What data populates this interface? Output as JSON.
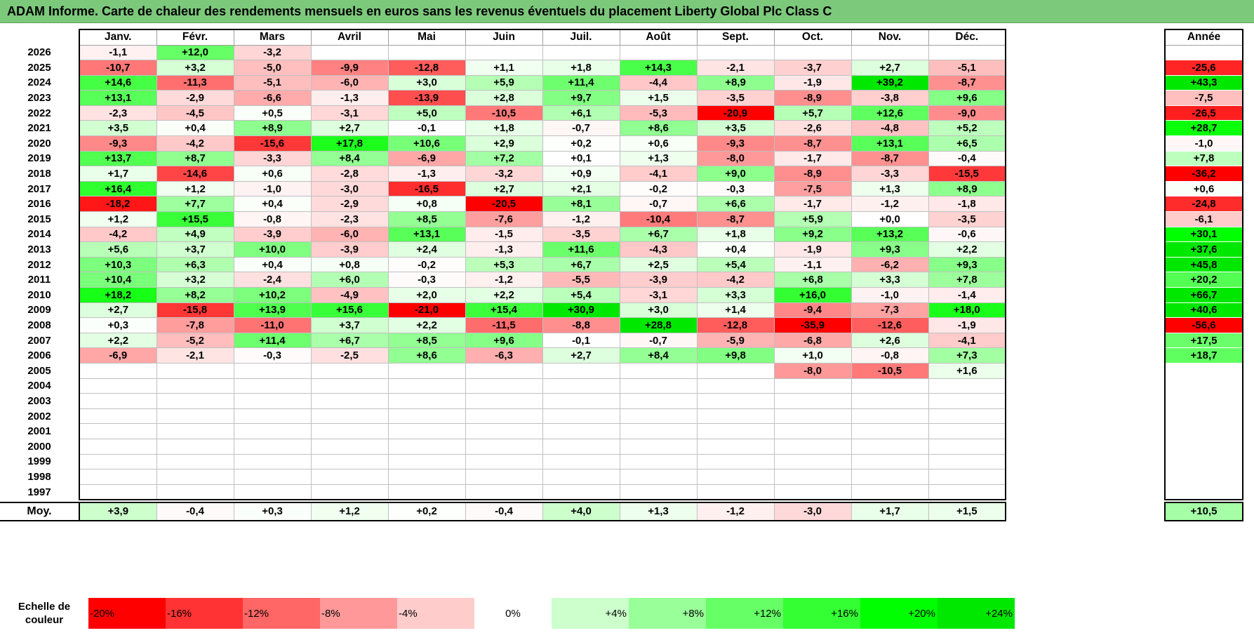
{
  "title": "ADAM Informe. Carte de chaleur des rendements mensuels en euros sans les revenus éventuels du placement Liberty Global Plc Class C",
  "months": [
    "Janv.",
    "Févr.",
    "Mars",
    "Avril",
    "Mai",
    "Juin",
    "Juil.",
    "Août",
    "Sept.",
    "Oct.",
    "Nov.",
    "Déc."
  ],
  "annual_header": "Année",
  "avg_label": "Moy.",
  "scale_label": "Echelle de couleur",
  "chart_data": {
    "type": "heatmap",
    "title": "ADAM Informe. Carte de chaleur des rendements mensuels en euros sans les revenus éventuels du placement Liberty Global Plc Class C",
    "x_categories": [
      "Janv.",
      "Févr.",
      "Mars",
      "Avril",
      "Mai",
      "Juin",
      "Juil.",
      "Août",
      "Sept.",
      "Oct.",
      "Nov.",
      "Déc.",
      "Année"
    ],
    "rows": [
      {
        "year": "2026",
        "values": [
          "-1,1",
          "+12,0",
          "-3,2",
          "",
          "",
          "",
          "",
          "",
          "",
          "",
          "",
          ""
        ],
        "annual": ""
      },
      {
        "year": "2025",
        "values": [
          "-10,7",
          "+3,2",
          "-5,0",
          "-9,9",
          "-12,8",
          "+1,1",
          "+1,8",
          "+14,3",
          "-2,1",
          "-3,7",
          "+2,7",
          "-5,1"
        ],
        "annual": "-25,6"
      },
      {
        "year": "2024",
        "values": [
          "+14,6",
          "-11,3",
          "-5,1",
          "-6,0",
          "+3,0",
          "+5,9",
          "+11,4",
          "-4,4",
          "+8,9",
          "-1,9",
          "+39,2",
          "-8,7"
        ],
        "annual": "+43,3"
      },
      {
        "year": "2023",
        "values": [
          "+13,1",
          "-2,9",
          "-6,6",
          "-1,3",
          "-13,9",
          "+2,8",
          "+9,7",
          "+1,5",
          "-3,5",
          "-8,9",
          "-3,8",
          "+9,6"
        ],
        "annual": "-7,5"
      },
      {
        "year": "2022",
        "values": [
          "-2,3",
          "-4,5",
          "+0,5",
          "-3,1",
          "+5,0",
          "-10,5",
          "+6,1",
          "-5,3",
          "-20,9",
          "+5,7",
          "+12,6",
          "-9,0"
        ],
        "annual": "-26,5"
      },
      {
        "year": "2021",
        "values": [
          "+3,5",
          "+0,4",
          "+8,9",
          "+2,7",
          "-0,1",
          "+1,8",
          "-0,7",
          "+8,6",
          "+3,5",
          "-2,6",
          "-4,8",
          "+5,2"
        ],
        "annual": "+28,7"
      },
      {
        "year": "2020",
        "values": [
          "-9,3",
          "-4,2",
          "-15,6",
          "+17,8",
          "+10,6",
          "+2,9",
          "+0,2",
          "+0,6",
          "-9,3",
          "-8,7",
          "+13,1",
          "+6,5"
        ],
        "annual": "-1,0"
      },
      {
        "year": "2019",
        "values": [
          "+13,7",
          "+8,7",
          "-3,3",
          "+8,4",
          "-6,9",
          "+7,2",
          "+0,1",
          "+1,3",
          "-8,0",
          "-1,7",
          "-8,7",
          "-0,4"
        ],
        "annual": "+7,8"
      },
      {
        "year": "2018",
        "values": [
          "+1,7",
          "-14,6",
          "+0,6",
          "-2,8",
          "-1,3",
          "-3,2",
          "+0,9",
          "-4,1",
          "+9,0",
          "-8,9",
          "-3,3",
          "-15,5"
        ],
        "annual": "-36,2"
      },
      {
        "year": "2017",
        "values": [
          "+16,4",
          "+1,2",
          "-1,0",
          "-3,0",
          "-16,5",
          "+2,7",
          "+2,1",
          "-0,2",
          "-0,3",
          "-7,5",
          "+1,3",
          "+8,9"
        ],
        "annual": "+0,6"
      },
      {
        "year": "2016",
        "values": [
          "-18,2",
          "+7,7",
          "+0,4",
          "-2,9",
          "+0,8",
          "-20,5",
          "+8,1",
          "-0,7",
          "+6,6",
          "-1,7",
          "-1,2",
          "-1,8"
        ],
        "annual": "-24,8"
      },
      {
        "year": "2015",
        "values": [
          "+1,2",
          "+15,5",
          "-0,8",
          "-2,3",
          "+8,5",
          "-7,6",
          "-1,2",
          "-10,4",
          "-8,7",
          "+5,9",
          "+0,0",
          "-3,5"
        ],
        "annual": "-6,1"
      },
      {
        "year": "2014",
        "values": [
          "-4,2",
          "+4,9",
          "-3,9",
          "-6,0",
          "+13,1",
          "-1,5",
          "-3,5",
          "+6,7",
          "+1,8",
          "+9,2",
          "+13,2",
          "-0,6"
        ],
        "annual": "+30,1"
      },
      {
        "year": "2013",
        "values": [
          "+5,6",
          "+3,7",
          "+10,0",
          "-3,9",
          "+2,4",
          "-1,3",
          "+11,6",
          "-4,3",
          "+0,4",
          "-1,9",
          "+9,3",
          "+2,2"
        ],
        "annual": "+37,6"
      },
      {
        "year": "2012",
        "values": [
          "+10,3",
          "+6,3",
          "+0,4",
          "+0,8",
          "-0,2",
          "+5,3",
          "+6,7",
          "+2,5",
          "+5,4",
          "-1,1",
          "-6,2",
          "+9,3"
        ],
        "annual": "+45,8"
      },
      {
        "year": "2011",
        "values": [
          "+10,4",
          "+3,2",
          "-2,4",
          "+6,0",
          "-0,3",
          "-1,2",
          "-5,5",
          "-3,9",
          "-4,2",
          "+6,8",
          "+3,3",
          "+7,8"
        ],
        "annual": "+20,2"
      },
      {
        "year": "2010",
        "values": [
          "+18,2",
          "+8,2",
          "+10,2",
          "-4,9",
          "+2,0",
          "+2,2",
          "+5,4",
          "-3,1",
          "+3,3",
          "+16,0",
          "-1,0",
          "-1,4"
        ],
        "annual": "+66,7"
      },
      {
        "year": "2009",
        "values": [
          "+2,7",
          "-15,8",
          "+13,9",
          "+15,6",
          "-21,0",
          "+15,4",
          "+30,9",
          "+3,0",
          "+1,4",
          "-9,4",
          "-7,3",
          "+18,0"
        ],
        "annual": "+40,6"
      },
      {
        "year": "2008",
        "values": [
          "+0,3",
          "-7,8",
          "-11,0",
          "+3,7",
          "+2,2",
          "-11,5",
          "-8,8",
          "+28,8",
          "-12,8",
          "-35,9",
          "-12,6",
          "-1,9"
        ],
        "annual": "-56,6"
      },
      {
        "year": "2007",
        "values": [
          "+2,2",
          "-5,2",
          "+11,4",
          "+6,7",
          "+8,5",
          "+9,6",
          "-0,1",
          "-0,7",
          "-5,9",
          "-6,8",
          "+2,6",
          "-4,1"
        ],
        "annual": "+17,5"
      },
      {
        "year": "2006",
        "values": [
          "-6,9",
          "-2,1",
          "-0,3",
          "-2,5",
          "+8,6",
          "-6,3",
          "+2,7",
          "+8,4",
          "+9,8",
          "+1,0",
          "-0,8",
          "+7,3"
        ],
        "annual": "+18,7"
      },
      {
        "year": "2005",
        "values": [
          "",
          "",
          "",
          "",
          "",
          "",
          "",
          "",
          "",
          "-8,0",
          "-10,5",
          "+1,6"
        ],
        "annual": ""
      },
      {
        "year": "2004",
        "values": [
          "",
          "",
          "",
          "",
          "",
          "",
          "",
          "",
          "",
          "",
          "",
          ""
        ],
        "annual": ""
      },
      {
        "year": "2003",
        "values": [
          "",
          "",
          "",
          "",
          "",
          "",
          "",
          "",
          "",
          "",
          "",
          ""
        ],
        "annual": ""
      },
      {
        "year": "2002",
        "values": [
          "",
          "",
          "",
          "",
          "",
          "",
          "",
          "",
          "",
          "",
          "",
          ""
        ],
        "annual": ""
      },
      {
        "year": "2001",
        "values": [
          "",
          "",
          "",
          "",
          "",
          "",
          "",
          "",
          "",
          "",
          "",
          ""
        ],
        "annual": ""
      },
      {
        "year": "2000",
        "values": [
          "",
          "",
          "",
          "",
          "",
          "",
          "",
          "",
          "",
          "",
          "",
          ""
        ],
        "annual": ""
      },
      {
        "year": "1999",
        "values": [
          "",
          "",
          "",
          "",
          "",
          "",
          "",
          "",
          "",
          "",
          "",
          ""
        ],
        "annual": ""
      },
      {
        "year": "1998",
        "values": [
          "",
          "",
          "",
          "",
          "",
          "",
          "",
          "",
          "",
          "",
          "",
          ""
        ],
        "annual": ""
      },
      {
        "year": "1997",
        "values": [
          "",
          "",
          "",
          "",
          "",
          "",
          "",
          "",
          "",
          "",
          "",
          ""
        ],
        "annual": ""
      }
    ],
    "averages": {
      "values": [
        "+3,9",
        "-0,4",
        "+0,3",
        "+1,2",
        "+0,2",
        "-0,4",
        "+4,0",
        "+1,3",
        "-1,2",
        "-3,0",
        "+1,7",
        "+1,5"
      ],
      "annual": "+10,5"
    },
    "color_scale": [
      {
        "label": "-20%",
        "value": -20,
        "color": "#ff0000"
      },
      {
        "label": "-16%",
        "value": -16,
        "color": "#ff3333"
      },
      {
        "label": "-12%",
        "value": -12,
        "color": "#ff6666"
      },
      {
        "label": "-8%",
        "value": -8,
        "color": "#ff9999"
      },
      {
        "label": "-4%",
        "value": -4,
        "color": "#ffcccc"
      },
      {
        "label": "0%",
        "value": 0,
        "color": "#ffffff"
      },
      {
        "label": "+4%",
        "value": 4,
        "color": "#ccffcc"
      },
      {
        "label": "+8%",
        "value": 8,
        "color": "#99ff99"
      },
      {
        "label": "+12%",
        "value": 12,
        "color": "#66ff66"
      },
      {
        "label": "+16%",
        "value": 16,
        "color": "#33ff33"
      },
      {
        "label": "+20%",
        "value": 20,
        "color": "#00ff00"
      },
      {
        "label": "+24%",
        "value": 24,
        "color": "#00e800"
      }
    ]
  }
}
